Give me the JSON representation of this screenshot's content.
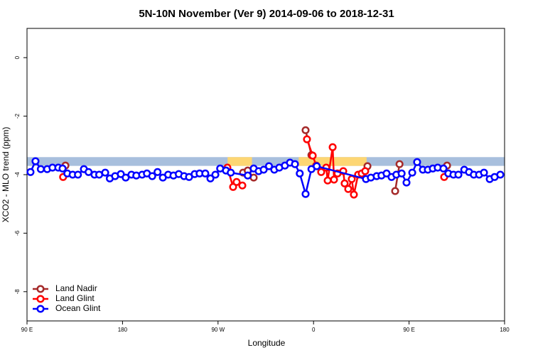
{
  "chart_data": {
    "type": "line",
    "title": "5N-10N November (Ver 9)   2014-09-06 to 2018-12-31",
    "x_label": "Longitude",
    "y_label": "XCO2 - MLO trend (ppm)",
    "xlim": [
      90,
      540
    ],
    "xticks": [
      {
        "value": 90,
        "label": "90 E"
      },
      180,
      {
        "value": 270,
        "label": "90 W"
      },
      {
        "value": 360,
        "label": "0"
      },
      {
        "value": 450,
        "label": "90 E"
      },
      {
        "value": 540,
        "label": "180"
      }
    ],
    "ylim": [
      -9,
      1
    ],
    "yticks": [
      0,
      -2,
      -4,
      -6,
      -8
    ],
    "band": {
      "range": [
        -3.7,
        -3.4
      ],
      "color": "#a8bfdd"
    },
    "highlight": {
      "spans": [
        [
          279,
          302
        ],
        [
          346,
          410
        ]
      ],
      "color": "#fdd673"
    },
    "legend": "bottom-left",
    "series": [
      {
        "name": "Land Nadir",
        "color": "#a52a2a",
        "x": [
          126.2,
          null,
          293.6,
          298,
          303.6,
          null,
          352.5,
          358,
          null,
          410.8,
          null,
          436.9,
          441,
          null,
          485.8
        ],
        "values": [
          -3.69,
          null,
          -3.93,
          -3.86,
          -4.1,
          null,
          -2.48,
          -3.33,
          null,
          -3.71,
          null,
          -4.56,
          -3.64,
          null,
          -3.69
        ]
      },
      {
        "name": "Land Glint",
        "color": "#ff0000",
        "x": [
          124,
          null,
          278.8,
          284.2,
          287.5,
          292.9,
          null,
          353.8,
          359.2,
          362.5,
          367.2,
          371.9,
          373.3,
          378,
          379.3,
          382.6,
          388,
          389.3,
          392.7,
          396,
          398,
          402,
          405.4,
          408.7,
          null,
          483.1
        ],
        "values": [
          -4.08,
          null,
          -3.76,
          -4.42,
          -4.25,
          -4.37,
          null,
          -2.79,
          -3.35,
          -3.69,
          -3.91,
          -3.76,
          -4.2,
          -3.06,
          -4.17,
          -3.96,
          -3.88,
          -4.3,
          -4.49,
          -4.15,
          -4.68,
          -4.0,
          -3.96,
          -3.88,
          null,
          -4.08
        ]
      },
      {
        "name": "Ocean Glint",
        "color": "#0000ff",
        "x": [
          93.3,
          98,
          103,
          109,
          114,
          119.5,
          123.5,
          128,
          133,
          138,
          143.6,
          148,
          153.6,
          158,
          163.7,
          168,
          173,
          178.4,
          183,
          188.4,
          193,
          198.5,
          203,
          208,
          213,
          218,
          223,
          228,
          233,
          238,
          242.7,
          248,
          252.6,
          258,
          262.8,
          267.5,
          272,
          277.5,
          282,
          298,
          303.6,
          308.3,
          313,
          318,
          323,
          327.7,
          333,
          337.8,
          342.5,
          347,
          352.5,
          358,
          363,
          409.4,
          414,
          419.5,
          424,
          428.8,
          433.5,
          438,
          443,
          447.6,
          453,
          457.6,
          463,
          467.7,
          472.4,
          477,
          482.4,
          487,
          491.8,
          496.5,
          502,
          506.5,
          511,
          516,
          520.6,
          526,
          530.6,
          536
        ],
        "values": [
          -3.91,
          -3.54,
          -3.81,
          -3.81,
          -3.76,
          -3.76,
          -3.79,
          -3.96,
          -4.0,
          -4.0,
          -3.81,
          -3.91,
          -4.0,
          -4.0,
          -3.93,
          -4.13,
          -4.05,
          -3.98,
          -4.1,
          -4.0,
          -4.03,
          -4.0,
          -3.96,
          -4.05,
          -3.91,
          -4.1,
          -4.0,
          -4.03,
          -3.98,
          -4.05,
          -4.08,
          -3.98,
          -3.96,
          -3.96,
          -4.13,
          -4.0,
          -3.79,
          -3.86,
          -3.93,
          -4.03,
          -3.79,
          -3.88,
          -3.83,
          -3.71,
          -3.83,
          -3.76,
          -3.69,
          -3.59,
          -3.64,
          -3.96,
          -4.66,
          -3.81,
          -3.71,
          -4.15,
          -4.1,
          -4.05,
          -4.03,
          -3.96,
          -4.08,
          -4.0,
          -3.96,
          -4.27,
          -3.93,
          -3.57,
          -3.83,
          -3.83,
          -3.79,
          -3.76,
          -3.79,
          -3.96,
          -4.0,
          -4.0,
          -3.83,
          -3.91,
          -4.0,
          -4.0,
          -3.93,
          -4.15,
          -4.08,
          -4.0
        ]
      }
    ]
  }
}
